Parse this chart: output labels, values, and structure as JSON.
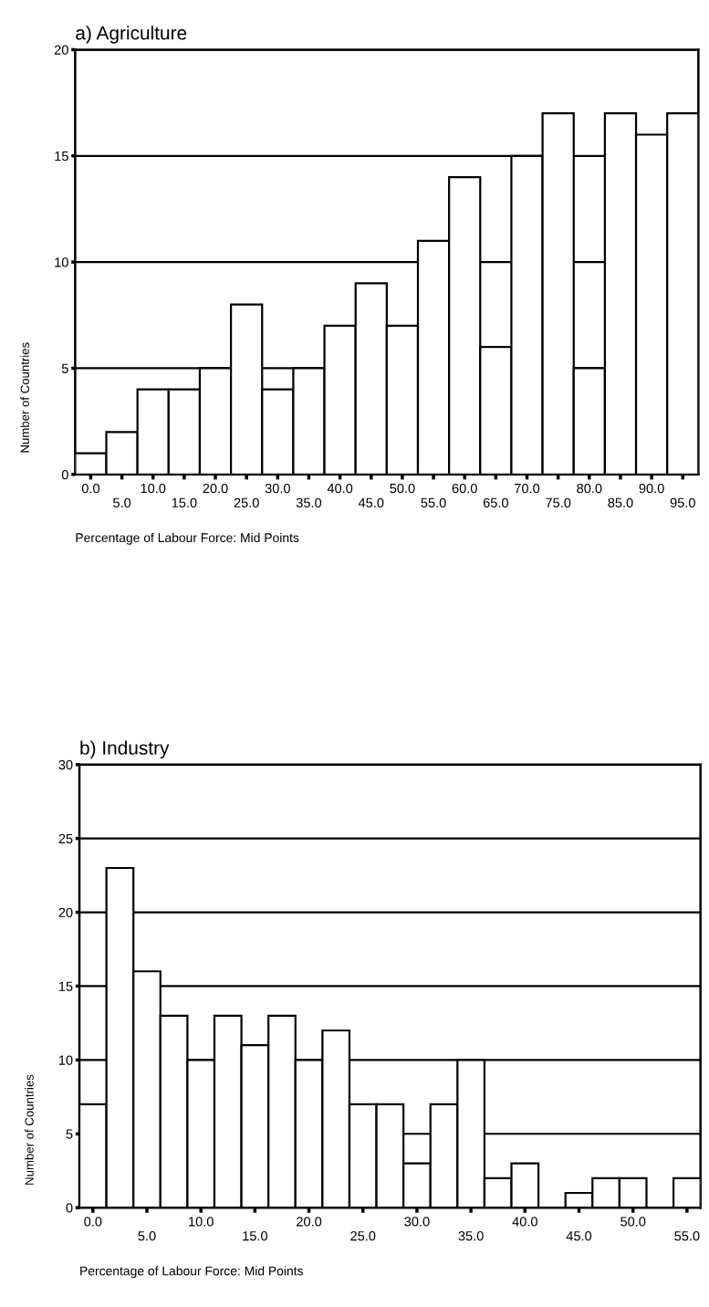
{
  "chart_data": [
    {
      "type": "bar",
      "title": "a) Agriculture",
      "xlabel": "Percentage of Labour Force: Mid Points",
      "ylabel": "Number of Countries",
      "categories": [
        "0.0",
        "5.0",
        "10.0",
        "15.0",
        "20.0",
        "25.0",
        "30.0",
        "35.0",
        "40.0",
        "45.0",
        "50.0",
        "55.0",
        "60.0",
        "65.0",
        "70.0",
        "75.0",
        "80.0",
        "85.0",
        "90.0",
        "95.0"
      ],
      "values": [
        1,
        2,
        4,
        4,
        5,
        8,
        4,
        5,
        7,
        9,
        7,
        11,
        14,
        6,
        15,
        17,
        5,
        17,
        16,
        17
      ],
      "color": "#ffffff",
      "ylim": [
        0,
        20
      ],
      "yticks": [
        0,
        5,
        10,
        15,
        20
      ],
      "grid": "y"
    },
    {
      "type": "bar",
      "title": "b) Industry",
      "xlabel": "Percentage of Labour Force: Mid Points",
      "ylabel": "Number of Countries",
      "categories": [
        "0.0",
        null,
        "5.0",
        null,
        "10.0",
        null,
        "15.0",
        null,
        "20.0",
        null,
        "25.0",
        null,
        "30.0",
        null,
        "35.0",
        null,
        "40.0",
        null,
        "45.0",
        null,
        "50.0",
        null,
        "55.0"
      ],
      "values": [
        7,
        23,
        16,
        13,
        10,
        13,
        11,
        13,
        10,
        12,
        7,
        7,
        3,
        7,
        10,
        2,
        3,
        0,
        1,
        2,
        2,
        0,
        2
      ],
      "color": "#ffffff",
      "ylim": [
        0,
        30
      ],
      "yticks": [
        0,
        5,
        10,
        15,
        20,
        25,
        30
      ],
      "grid": "y"
    }
  ]
}
